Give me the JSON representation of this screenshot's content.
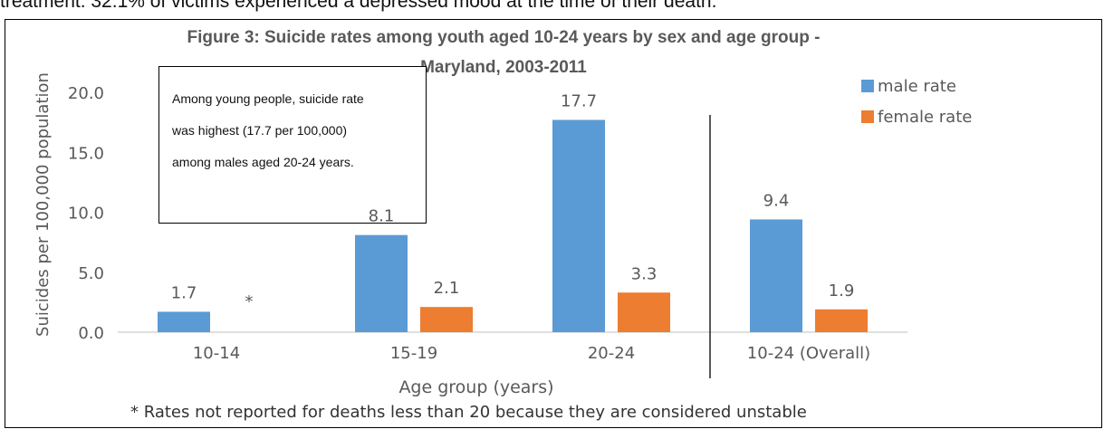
{
  "page": {
    "top_fragment": "treatment. 32.1% of victims experienced a depressed mood at the time of their death."
  },
  "colors": {
    "male": "#5b9bd5",
    "female": "#ed7d31",
    "text": "#595959",
    "gridline": "#d9d9d9",
    "axis": "#bfbfbf"
  },
  "chart_data": {
    "type": "bar",
    "title": "Figure 3: Suicide rates among youth aged 10-24 years by sex  and age group - Maryland, 2003-2011",
    "title_lines": [
      "Figure 3: Suicide rates among youth aged 10-24 years by sex  and age group -",
      "Maryland, 2003-2011"
    ],
    "xlabel": "Age group (years)",
    "ylabel": "Suicides per 100,000 population",
    "categories": [
      "10-14",
      "15-19",
      "20-24",
      "10-24 (Overall)"
    ],
    "series": [
      {
        "name": "male rate",
        "values": [
          1.7,
          8.1,
          17.7,
          9.4
        ],
        "labels": [
          "1.7",
          "8.1",
          "17.7",
          "9.4"
        ]
      },
      {
        "name": "female rate",
        "values": [
          null,
          2.1,
          3.3,
          1.9
        ],
        "labels": [
          "*",
          "2.1",
          "3.3",
          "1.9"
        ]
      }
    ],
    "ylim": [
      0,
      20
    ],
    "yticks": [
      "0.0",
      "5.0",
      "10.0",
      "15.0",
      "20.0"
    ],
    "grid": false,
    "legend": "right",
    "annotation_lines": [
      "Among young people, suicide rate",
      "was highest (17.7 per 100,000)",
      "among males aged 20-24 years."
    ],
    "footnote": "* Rates not reported for deaths less than 20 because they are considered unstable"
  }
}
